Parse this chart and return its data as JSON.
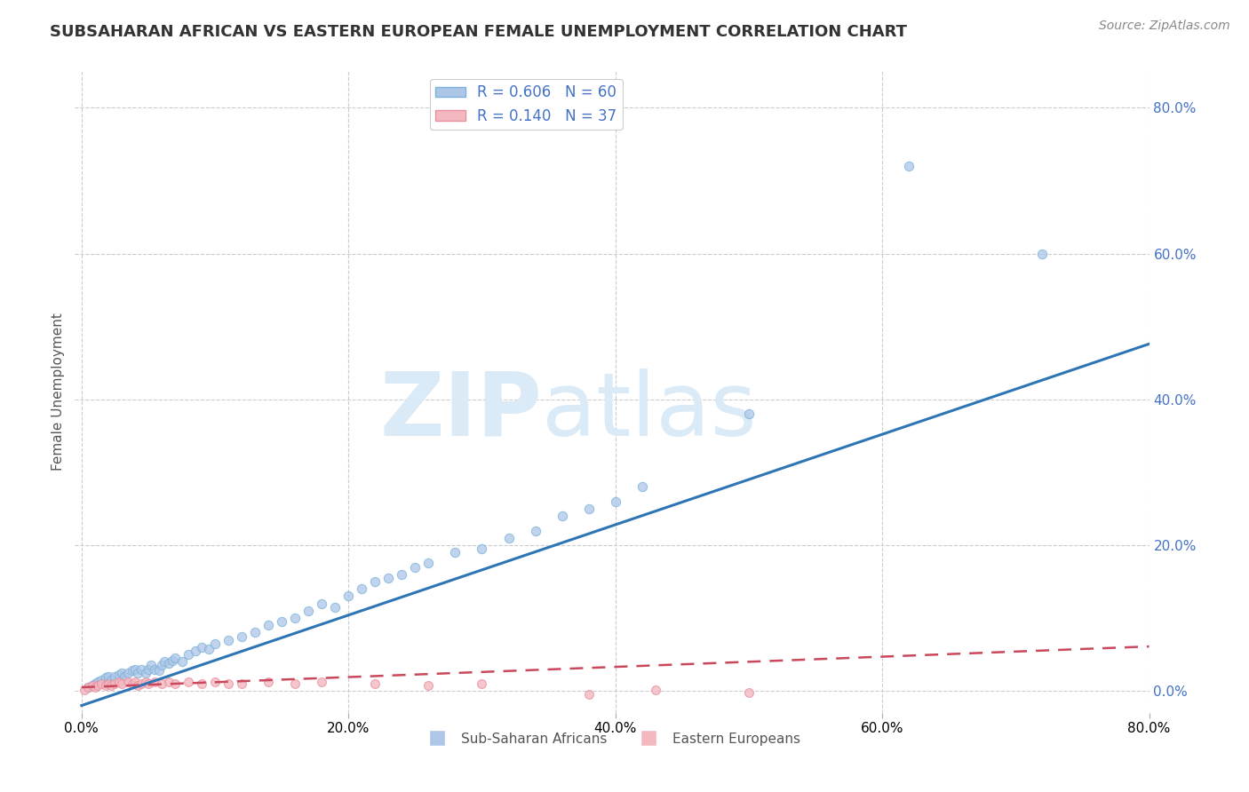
{
  "title": "SUBSAHARAN AFRICAN VS EASTERN EUROPEAN FEMALE UNEMPLOYMENT CORRELATION CHART",
  "source": "Source: ZipAtlas.com",
  "ylabel": "Female Unemployment",
  "background_color": "#ffffff",
  "blue_scatter_color": "#aec6e8",
  "blue_scatter_edge": "#7ab3d8",
  "pink_scatter_color": "#f4b8c1",
  "pink_scatter_edge": "#e8909f",
  "blue_line_color": "#2e75b6",
  "pink_line_color": "#c9485b",
  "grid_color": "#cccccc",
  "watermark_zip_color": "#daeaf7",
  "watermark_atlas_color": "#daeaf7",
  "legend_label_color": "#4472c4",
  "legend_blue_face": "#aec6e8",
  "legend_pink_face": "#f4b8c1",
  "bottom_legend_color": "#555555",
  "title_color": "#333333",
  "source_color": "#888888",
  "ylabel_color": "#555555",
  "right_tick_color": "#4472c4",
  "blue_R": 0.606,
  "blue_N": 60,
  "pink_R": 0.14,
  "pink_N": 37,
  "blue_line_intercept": -0.02,
  "blue_line_slope": 0.62,
  "pink_line_intercept": 0.005,
  "pink_line_slope": 0.07,
  "blue_points_x": [
    0.005,
    0.008,
    0.01,
    0.012,
    0.015,
    0.018,
    0.02,
    0.022,
    0.025,
    0.028,
    0.03,
    0.032,
    0.035,
    0.038,
    0.04,
    0.042,
    0.045,
    0.048,
    0.05,
    0.052,
    0.055,
    0.058,
    0.06,
    0.062,
    0.065,
    0.068,
    0.07,
    0.075,
    0.08,
    0.085,
    0.09,
    0.095,
    0.1,
    0.11,
    0.12,
    0.13,
    0.14,
    0.15,
    0.16,
    0.17,
    0.18,
    0.19,
    0.2,
    0.21,
    0.22,
    0.23,
    0.24,
    0.25,
    0.26,
    0.28,
    0.3,
    0.32,
    0.34,
    0.36,
    0.38,
    0.4,
    0.42,
    0.5,
    0.62,
    0.72
  ],
  "blue_points_y": [
    0.005,
    0.008,
    0.01,
    0.012,
    0.015,
    0.018,
    0.02,
    0.015,
    0.02,
    0.022,
    0.025,
    0.02,
    0.025,
    0.028,
    0.03,
    0.025,
    0.03,
    0.025,
    0.03,
    0.035,
    0.03,
    0.028,
    0.035,
    0.04,
    0.038,
    0.042,
    0.045,
    0.04,
    0.05,
    0.055,
    0.06,
    0.058,
    0.065,
    0.07,
    0.075,
    0.08,
    0.09,
    0.095,
    0.1,
    0.11,
    0.12,
    0.115,
    0.13,
    0.14,
    0.15,
    0.155,
    0.16,
    0.17,
    0.175,
    0.19,
    0.195,
    0.21,
    0.22,
    0.24,
    0.25,
    0.26,
    0.28,
    0.38,
    0.72,
    0.6
  ],
  "pink_points_x": [
    0.002,
    0.005,
    0.008,
    0.01,
    0.012,
    0.015,
    0.018,
    0.02,
    0.022,
    0.025,
    0.028,
    0.03,
    0.035,
    0.038,
    0.04,
    0.042,
    0.045,
    0.048,
    0.05,
    0.055,
    0.06,
    0.065,
    0.07,
    0.08,
    0.09,
    0.1,
    0.11,
    0.12,
    0.14,
    0.16,
    0.18,
    0.22,
    0.26,
    0.3,
    0.38,
    0.43,
    0.5
  ],
  "pink_points_y": [
    0.002,
    0.005,
    0.008,
    0.005,
    0.008,
    0.01,
    0.008,
    0.01,
    0.008,
    0.01,
    0.012,
    0.01,
    0.012,
    0.01,
    0.012,
    0.008,
    0.01,
    0.012,
    0.01,
    0.012,
    0.01,
    0.012,
    0.01,
    0.012,
    0.01,
    0.012,
    0.01,
    0.01,
    0.012,
    0.01,
    0.012,
    0.01,
    0.008,
    0.01,
    -0.005,
    0.002,
    -0.002
  ]
}
